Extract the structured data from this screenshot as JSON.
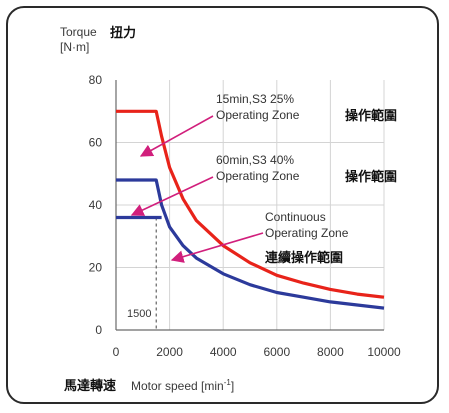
{
  "chart_data": {
    "type": "line",
    "ylabel_line1": "Torque",
    "ylabel_cjk": "扭力",
    "ylabel_line2": "[N·m]",
    "xlabel_cjk": "馬達轉速",
    "xlabel_main": "Motor speed [min",
    "xlabel_sup": "-1",
    "xlabel_end": "]",
    "xlim": [
      0,
      10000
    ],
    "ylim": [
      0,
      80
    ],
    "x_ticks": [
      0,
      2000,
      4000,
      6000,
      8000,
      10000
    ],
    "y_ticks": [
      0,
      20,
      40,
      60,
      80
    ],
    "base_speed_marker": 1500,
    "series": [
      {
        "name_line1": "15min,S3 25%",
        "name_line2": "Operating Zone",
        "name_cjk": "操作範圍",
        "color": "#e8231a",
        "x": [
          0,
          1500,
          1700,
          2000,
          2500,
          3000,
          3500,
          4000,
          5000,
          6000,
          7000,
          8000,
          9000,
          10000
        ],
        "y": [
          70,
          70,
          62,
          52,
          42,
          35,
          31,
          27,
          21.5,
          17.5,
          15,
          13,
          11.5,
          10.5
        ]
      },
      {
        "name_line1": "60min,S3 40%",
        "name_line2": "Operating Zone",
        "name_cjk": "操作範圍",
        "color": "#2c3a9b",
        "x": [
          0,
          1500,
          1700,
          2000,
          2500,
          3000,
          4000,
          5000,
          6000,
          7000,
          8000,
          9000,
          10000
        ],
        "y": [
          48,
          48,
          40,
          33,
          27,
          23,
          18,
          14.5,
          12,
          10.5,
          9,
          8,
          7
        ]
      },
      {
        "name_line1": "Continuous",
        "name_line2": "Operating Zone",
        "name_cjk": "連續操作範圍",
        "color": "#2c3a9b",
        "x": [
          0,
          1700
        ],
        "y": [
          36,
          36
        ]
      }
    ]
  }
}
